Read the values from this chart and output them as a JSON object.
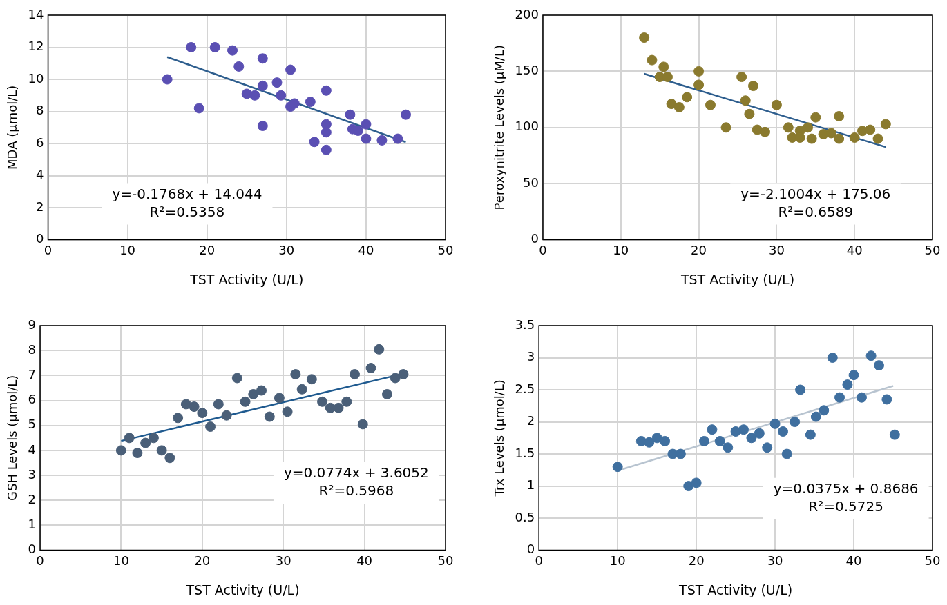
{
  "chart_data": [
    {
      "type": "scatter",
      "xlabel": "TST Activity (U/L)",
      "ylabel": "MDA (µmol/L)",
      "xlim": [
        0,
        50
      ],
      "xticks": [
        0,
        10,
        20,
        30,
        40,
        50
      ],
      "ylim": [
        0,
        14
      ],
      "yticks": [
        0,
        2,
        4,
        6,
        8,
        10,
        12,
        14
      ],
      "grid": true,
      "legend": false,
      "marker": "circle",
      "annotations": [
        "y=-0.1768x + 14.044",
        "R²=0.5358"
      ],
      "series": [
        {
          "color": "#5a4fb3",
          "x": [
            15,
            18,
            19,
            21,
            23.2,
            24,
            25,
            26,
            27,
            27,
            27,
            28.8,
            29.3,
            30.5,
            30.5,
            31,
            33,
            33.5,
            35,
            35,
            35,
            35,
            38,
            38.3,
            39,
            40,
            40,
            42,
            44,
            45
          ],
          "values": [
            10,
            12,
            8.2,
            12,
            11.8,
            10.8,
            9.1,
            9,
            11.3,
            9.6,
            7.1,
            9.8,
            9,
            10.6,
            8.3,
            8.5,
            8.6,
            6.1,
            9.3,
            7.2,
            6.7,
            5.6,
            7.8,
            6.9,
            6.8,
            7.2,
            6.3,
            6.2,
            6.3,
            7.8
          ]
        },
        {
          "type": "line",
          "color": "#2e5e8e",
          "marker": "none",
          "line_style": "solid",
          "x": [
            15,
            45
          ],
          "values": [
            11.39,
            6.09
          ]
        }
      ]
    },
    {
      "type": "scatter",
      "xlabel": "TST Activity (U/L)",
      "ylabel": "Peroxynitrite Levels (µM/L)",
      "xlim": [
        0,
        50
      ],
      "xticks": [
        0,
        10,
        20,
        30,
        40,
        50
      ],
      "ylim": [
        0,
        200
      ],
      "yticks": [
        0,
        50,
        100,
        150,
        200
      ],
      "grid": true,
      "legend": false,
      "marker": "circle",
      "annotations": [
        "y=-2.1004x + 175.06",
        "R²=0.6589"
      ],
      "series": [
        {
          "color": "#8a7a2e",
          "x": [
            13,
            14,
            15,
            15.5,
            16,
            16.5,
            17.5,
            18.5,
            20,
            20,
            21.5,
            23.5,
            25.5,
            26,
            26.5,
            27,
            27.5,
            28.5,
            30,
            31.5,
            32,
            33,
            33,
            34,
            34.5,
            35,
            36,
            37,
            38,
            38,
            40,
            41,
            42,
            43,
            44
          ],
          "values": [
            180,
            160,
            145,
            154,
            145,
            121,
            118,
            127,
            150,
            138,
            120,
            100,
            145,
            124,
            112,
            137,
            98,
            96,
            120,
            100,
            91,
            97,
            91,
            100,
            90,
            109,
            94,
            95,
            110,
            90,
            91,
            97,
            98,
            90,
            103
          ]
        },
        {
          "type": "line",
          "color": "#2e5e8e",
          "marker": "none",
          "line_style": "solid",
          "x": [
            13,
            44
          ],
          "values": [
            147.8,
            82.6
          ]
        }
      ]
    },
    {
      "type": "scatter",
      "xlabel": "TST Activity (U/L)",
      "ylabel": "GSH Levels (µmol/L)",
      "xlim": [
        0,
        50
      ],
      "xticks": [
        0,
        10,
        20,
        30,
        40,
        50
      ],
      "ylim": [
        0,
        9
      ],
      "yticks": [
        0,
        1,
        2,
        3,
        4,
        5,
        6,
        7,
        8,
        9
      ],
      "grid": true,
      "legend": false,
      "marker": "circle",
      "annotations": [
        "y=0.0774x + 3.6052",
        "R²=0.5968"
      ],
      "series": [
        {
          "color": "#4a5f78",
          "x": [
            10,
            11,
            12,
            13,
            14,
            15,
            16,
            17,
            18,
            19,
            20,
            21,
            22,
            23,
            24.3,
            25.3,
            26.3,
            27.3,
            28.3,
            29.5,
            30.5,
            31.5,
            32.3,
            33.5,
            34.8,
            35.8,
            36.8,
            37.8,
            38.8,
            39.8,
            40.8,
            41.8,
            42.8,
            43.8,
            44.8
          ],
          "values": [
            4,
            4.5,
            3.9,
            4.3,
            4.5,
            4,
            3.7,
            5.3,
            5.85,
            5.75,
            5.5,
            4.95,
            5.85,
            5.4,
            6.9,
            5.95,
            6.25,
            6.4,
            5.35,
            6.1,
            5.55,
            7.05,
            6.45,
            6.85,
            5.95,
            5.7,
            5.7,
            5.95,
            7.05,
            5.05,
            7.3,
            8.05,
            6.25,
            6.9,
            7.05
          ]
        },
        {
          "type": "line",
          "color": "#1f5a8f",
          "marker": "none",
          "line_style": "solid",
          "x": [
            10,
            45
          ],
          "values": [
            4.38,
            7.09
          ]
        }
      ]
    },
    {
      "type": "scatter",
      "xlabel": "TST Activity (U/L)",
      "ylabel": "Trx Levels (µmol/L)",
      "xlim": [
        0,
        50
      ],
      "xticks": [
        0,
        10,
        20,
        30,
        40,
        50
      ],
      "ylim": [
        0,
        3.5
      ],
      "yticks": [
        0,
        0.5,
        1,
        1.5,
        2,
        2.5,
        3,
        3.5
      ],
      "grid": true,
      "legend": false,
      "marker": "circle",
      "annotations": [
        "y=0.0375x + 0.8686",
        "R²=0.5725"
      ],
      "series": [
        {
          "color": "#3f6f9f",
          "x": [
            10,
            13,
            14,
            15,
            16,
            17,
            18,
            19,
            20,
            21,
            22,
            23,
            24,
            25,
            26,
            27,
            28,
            29,
            30,
            31,
            31.5,
            32.5,
            33.2,
            34.5,
            35.2,
            36.2,
            37.3,
            38.2,
            39.2,
            40,
            41,
            42.2,
            43.2,
            44.2,
            45.2
          ],
          "values": [
            1.3,
            1.7,
            1.68,
            1.75,
            1.7,
            1.5,
            1.5,
            1,
            1.05,
            1.7,
            1.88,
            1.7,
            1.6,
            1.85,
            1.88,
            1.75,
            1.82,
            1.6,
            1.97,
            1.85,
            1.5,
            2,
            2.5,
            1.8,
            2.08,
            2.18,
            3,
            2.38,
            2.58,
            2.73,
            2.38,
            3.03,
            2.88,
            2.35,
            1.8
          ]
        },
        {
          "type": "line",
          "color": "#b8c4d0",
          "marker": "none",
          "line_style": "solid",
          "x": [
            10,
            45
          ],
          "values": [
            1.24,
            2.56
          ]
        }
      ]
    }
  ]
}
